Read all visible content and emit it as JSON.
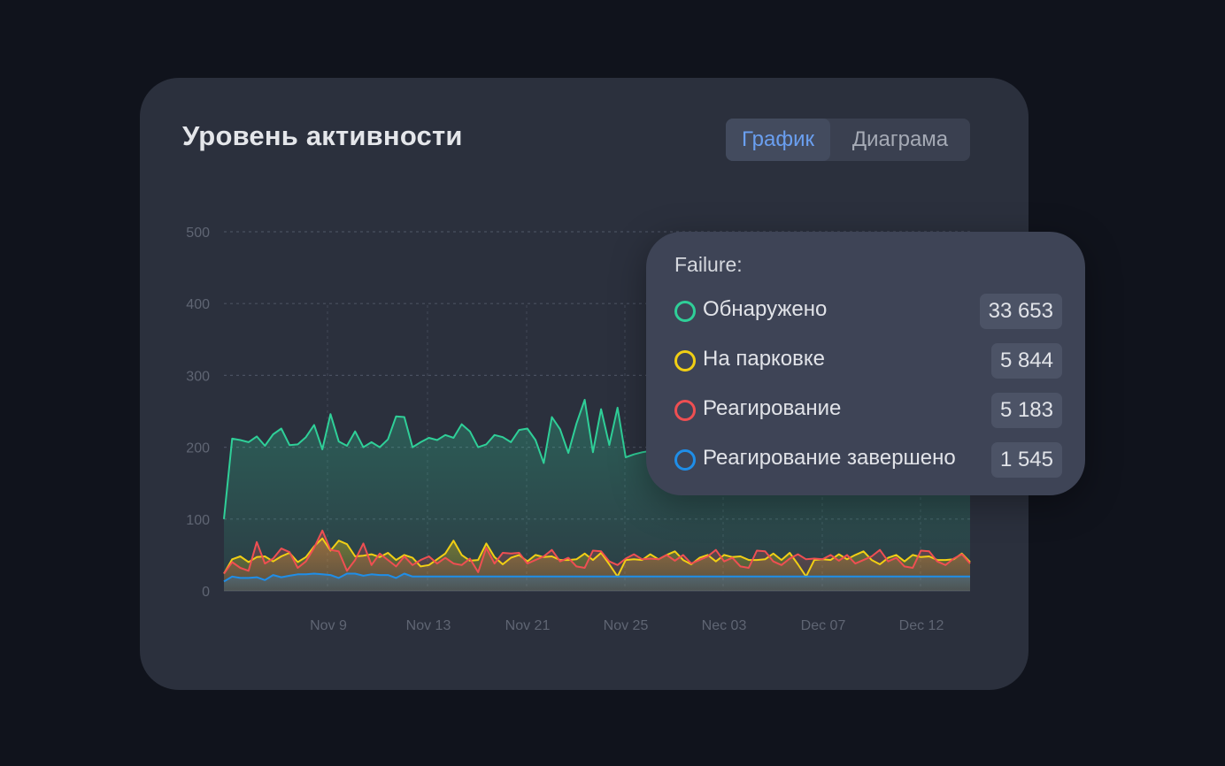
{
  "card": {
    "title": "Уровень активности",
    "tabs": [
      {
        "label": "График",
        "active": true
      },
      {
        "label": "Диаграма",
        "active": false
      }
    ]
  },
  "tooltip": {
    "title": "Failure:",
    "items": [
      {
        "label": "Обнаружено",
        "value": "33 653",
        "color": "#2fcf98"
      },
      {
        "label": "На парковке",
        "value": "5 844",
        "color": "#f1cf14"
      },
      {
        "label": "Реагирование",
        "value": "5 183",
        "color": "#ef4f52"
      },
      {
        "label": "Реагирование завершено",
        "value": "1 545",
        "color": "#1f8ee8"
      }
    ]
  },
  "chart_data": {
    "type": "area",
    "ylim": [
      0,
      500
    ],
    "yticks": [
      0,
      100,
      200,
      300,
      400,
      500
    ],
    "xtick_labels": [
      "Nov 9",
      "Nov 13",
      "Nov 21",
      "Nov 25",
      "Nec 03",
      "Dec 07",
      "Dec 12"
    ],
    "grid": true,
    "series": [
      {
        "color": "#2fcf98",
        "values": [
          100,
          212,
          210,
          207,
          215,
          202,
          218,
          226,
          203,
          204,
          214,
          231,
          197,
          246,
          208,
          202,
          222,
          200,
          207,
          200,
          211,
          243,
          242,
          200,
          207,
          213,
          210,
          217,
          213,
          232,
          222,
          200,
          204,
          217,
          214,
          207,
          224,
          226,
          210,
          178,
          242,
          225,
          192,
          233,
          266,
          193,
          253,
          203,
          255,
          186,
          190,
          193,
          195,
          198,
          200,
          203,
          205,
          208,
          210,
          212,
          214,
          216,
          218,
          216,
          214,
          212,
          210,
          214,
          218,
          220,
          222,
          220,
          218,
          216,
          214,
          218,
          222,
          224,
          220,
          218,
          216,
          214,
          212,
          210,
          215,
          218,
          220,
          222,
          218,
          215,
          212,
          210
        ]
      },
      {
        "color": "#f1cf14",
        "values": [
          24,
          44,
          48,
          40,
          47,
          48,
          41,
          48,
          53,
          40,
          47,
          62,
          73,
          56,
          70,
          65,
          48,
          49,
          51,
          47,
          53,
          43,
          50,
          46,
          34,
          36,
          44,
          52,
          70,
          50,
          42,
          43,
          66,
          47,
          37,
          46,
          50,
          41,
          50,
          47,
          48,
          43,
          43,
          44,
          52,
          43,
          53,
          37,
          20,
          43,
          44,
          43,
          51,
          44,
          50,
          55,
          43,
          37,
          46,
          50,
          41,
          50,
          47,
          48,
          43,
          43,
          44,
          52,
          43,
          53,
          37,
          20,
          43,
          44,
          43,
          51,
          44,
          50,
          55,
          43,
          37,
          46,
          50,
          41,
          50,
          47,
          48,
          43,
          43,
          44,
          52,
          40
        ]
      },
      {
        "color": "#ef4f52",
        "values": [
          24,
          40,
          32,
          28,
          68,
          38,
          45,
          59,
          54,
          32,
          41,
          60,
          84,
          57,
          55,
          28,
          43,
          66,
          36,
          52,
          43,
          34,
          48,
          36,
          43,
          48,
          38,
          46,
          38,
          36,
          45,
          26,
          60,
          38,
          53,
          52,
          53,
          38,
          43,
          48,
          57,
          41,
          46,
          34,
          32,
          56,
          55,
          41,
          36,
          45,
          51,
          44,
          45,
          44,
          50,
          42,
          50,
          38,
          43,
          48,
          57,
          41,
          46,
          34,
          32,
          56,
          55,
          41,
          36,
          45,
          51,
          44,
          45,
          44,
          50,
          42,
          50,
          38,
          43,
          48,
          57,
          41,
          46,
          34,
          32,
          56,
          55,
          41,
          36,
          45,
          51,
          38
        ]
      },
      {
        "color": "#1f8ee8",
        "values": [
          13,
          20,
          18,
          18,
          19,
          15,
          22,
          19,
          21,
          23,
          23,
          24,
          23,
          22,
          18,
          24,
          24,
          21,
          23,
          22,
          22,
          18,
          24,
          20,
          20,
          20,
          20,
          20,
          20,
          20,
          20,
          20,
          20,
          20,
          20,
          20,
          20,
          20,
          20,
          20,
          20,
          20,
          20,
          20,
          20,
          20,
          20,
          20,
          20,
          20,
          20,
          20,
          20,
          20,
          20,
          20,
          20,
          20,
          20,
          20,
          20,
          20,
          20,
          20,
          20,
          20,
          20,
          20,
          20,
          20,
          20,
          20,
          20,
          20,
          20,
          20,
          20,
          20,
          20,
          20,
          20,
          20,
          20,
          20,
          20,
          20,
          20,
          20,
          20,
          20,
          20,
          20
        ]
      }
    ]
  }
}
